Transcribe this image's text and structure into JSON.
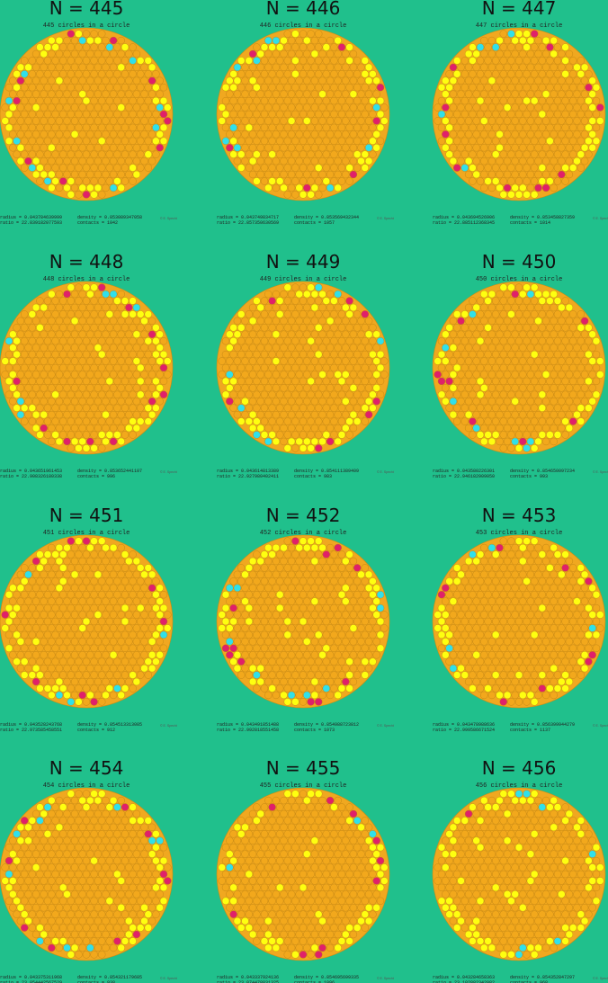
{
  "panels": [
    {
      "title": "N = 445",
      "subtitle": "445 circles in a circle",
      "radius": "radius =  0.043784639999",
      "density": "density = 0.853089347058",
      "ratio": "ratio  = 22.839182077593",
      "contacts": "contacts = 1042",
      "credit": "© E. Specht"
    },
    {
      "title": "N = 446",
      "subtitle": "446 circles in a circle",
      "radius": "radius =  0.043749834717",
      "density": "density = 0.853569432344",
      "ratio": "ratio  = 22.857350630569",
      "contacts": "contacts = 1057",
      "credit": "© E. Specht"
    },
    {
      "title": "N = 447",
      "subtitle": "447 circles in a circle",
      "radius": "radius =  0.043694526906",
      "density": "density = 0.853458827359",
      "ratio": "ratio  = 22.885112368345",
      "contacts": "contacts = 1014",
      "credit": "© E. Specht"
    },
    {
      "title": "N = 448",
      "subtitle": "448 circles in a circle",
      "radius": "radius =  0.043651961453",
      "density": "density = 0.853652441107",
      "ratio": "ratio  = 22.908326180338",
      "contacts": "contacts = 996",
      "credit": "© E. Specht"
    },
    {
      "title": "N = 449",
      "subtitle": "449 circles in a circle",
      "radius": "radius =  0.043614813389",
      "density": "density = 0.854111389409",
      "ratio": "ratio  = 22.927980402411",
      "contacts": "contacts = 983",
      "credit": "© E. Specht"
    },
    {
      "title": "N = 450",
      "subtitle": "450 circles in a circle",
      "radius": "radius =  0.043580226301",
      "density": "density = 0.854650097234",
      "ratio": "ratio  = 22.946182909050",
      "contacts": "contacts = 993",
      "credit": "© E. Specht"
    },
    {
      "title": "N = 451",
      "subtitle": "451 circles in a circle",
      "radius": "radius =  0.043528243768",
      "density": "density = 0.854513313085",
      "ratio": "ratio  = 22.973585458551",
      "contacts": "contacts = 912",
      "credit": "© E. Specht"
    },
    {
      "title": "N = 452",
      "subtitle": "452 circles in a circle",
      "radius": "radius =  0.043491851488",
      "density": "density = 0.854988723812",
      "ratio": "ratio  = 22.992818551458",
      "contacts": "contacts = 1073",
      "credit": "© E. Specht"
    },
    {
      "title": "N = 453",
      "subtitle": "453 circles in a circle",
      "radius": "radius =  0.043478988636",
      "density": "density = 0.856399944279",
      "ratio": "ratio  = 22.999586671524",
      "contacts": "contacts = 1137",
      "credit": "© E. Specht"
    },
    {
      "title": "N = 454",
      "subtitle": "454 circles in a circle",
      "radius": "radius =  0.043375311968",
      "density": "density = 0.854321179685",
      "ratio": "ratio  = 23.054442567529",
      "contacts": "contacts = 938",
      "credit": "© E. Specht"
    },
    {
      "title": "N = 455",
      "subtitle": "455 circles in a circle",
      "radius": "radius =  0.043337924136",
      "density": "density = 0.854695699335",
      "ratio": "ratio  = 23.074478831325",
      "contacts": "contacts = 1096",
      "credit": "© E. Specht"
    },
    {
      "title": "N = 456",
      "subtitle": "456 circles in a circle",
      "radius": "radius =  0.043284658363",
      "density": "density = 0.854352847297",
      "ratio": "ratio  = 23.102882342082",
      "contacts": "contacts = 968",
      "credit": "© E. Specht"
    }
  ]
}
